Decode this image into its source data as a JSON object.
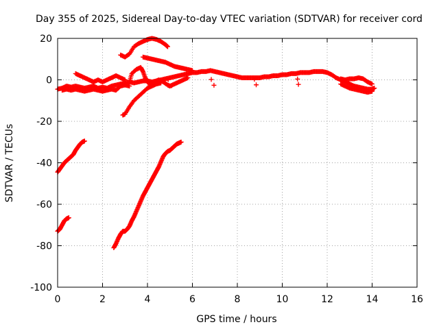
{
  "chart_data": {
    "type": "scatter",
    "title": "Day 355 of 2025, Sidereal Day-to-day VTEC variation (SDTVAR) for receiver cord",
    "xlabel": "GPS time / hours",
    "ylabel": "SDTVAR / TECUs",
    "xlim": [
      0,
      16
    ],
    "ylim": [
      -100,
      20
    ],
    "x_ticks": [
      0,
      2,
      4,
      6,
      8,
      10,
      12,
      14,
      16
    ],
    "y_ticks": [
      -100,
      -80,
      -60,
      -40,
      -20,
      0,
      20
    ],
    "grid": true,
    "marker": "plus",
    "color": "#ff0000",
    "series": [
      {
        "name": "baseline-band",
        "points": [
          [
            0.0,
            -4.5
          ],
          [
            0.2,
            -4
          ],
          [
            0.4,
            -3
          ],
          [
            0.6,
            -3.5
          ],
          [
            0.8,
            -3
          ],
          [
            1.0,
            -3.5
          ],
          [
            1.2,
            -4
          ],
          [
            1.4,
            -3.5
          ],
          [
            1.6,
            -3
          ],
          [
            1.8,
            -4
          ],
          [
            2.0,
            -3.5
          ],
          [
            2.2,
            -4
          ],
          [
            2.4,
            -3
          ],
          [
            2.6,
            -2.5
          ],
          [
            2.8,
            -2
          ],
          [
            3.0,
            -1.5
          ],
          [
            3.2,
            -1
          ],
          [
            3.4,
            -1.5
          ],
          [
            3.6,
            -1
          ],
          [
            3.8,
            -0.5
          ],
          [
            4.0,
            -0.5
          ],
          [
            4.2,
            -1
          ],
          [
            4.4,
            -0.5
          ],
          [
            4.6,
            0
          ],
          [
            4.8,
            0.5
          ],
          [
            5.0,
            1
          ],
          [
            5.2,
            1.5
          ],
          [
            5.4,
            2
          ],
          [
            5.6,
            2.5
          ],
          [
            5.8,
            3
          ],
          [
            6.0,
            3.5
          ],
          [
            6.2,
            3.5
          ],
          [
            6.4,
            4
          ],
          [
            6.6,
            4
          ],
          [
            6.8,
            4.5
          ],
          [
            7.0,
            4
          ],
          [
            7.2,
            3.5
          ],
          [
            7.4,
            3
          ],
          [
            7.6,
            2.5
          ],
          [
            7.8,
            2
          ],
          [
            8.0,
            1.5
          ],
          [
            8.2,
            1
          ],
          [
            8.4,
            1
          ],
          [
            8.6,
            1
          ],
          [
            8.8,
            1
          ],
          [
            9.0,
            1
          ],
          [
            9.2,
            1.5
          ],
          [
            9.4,
            1.5
          ],
          [
            9.6,
            2
          ],
          [
            9.8,
            2
          ],
          [
            10.0,
            2.5
          ],
          [
            10.2,
            2.5
          ],
          [
            10.4,
            3
          ],
          [
            10.6,
            3
          ],
          [
            10.8,
            3.5
          ],
          [
            11.0,
            3.5
          ],
          [
            11.2,
            3.5
          ],
          [
            11.4,
            4
          ],
          [
            11.6,
            4
          ],
          [
            11.8,
            4
          ],
          [
            12.0,
            3.5
          ],
          [
            12.2,
            2.5
          ],
          [
            12.4,
            1
          ],
          [
            12.6,
            0
          ],
          [
            12.8,
            -1
          ],
          [
            13.0,
            -2
          ],
          [
            13.2,
            -3
          ],
          [
            13.4,
            -3.5
          ],
          [
            13.6,
            -4
          ],
          [
            13.8,
            -4.5
          ],
          [
            14.0,
            -4.5
          ],
          [
            14.1,
            -4
          ]
        ]
      },
      {
        "name": "baseline-band-lower",
        "points": [
          [
            0.2,
            -5
          ],
          [
            0.4,
            -4.5
          ],
          [
            0.6,
            -5
          ],
          [
            0.8,
            -4.5
          ],
          [
            1.0,
            -5
          ],
          [
            1.2,
            -5.5
          ],
          [
            1.4,
            -5
          ],
          [
            1.6,
            -4.5
          ],
          [
            1.8,
            -5
          ],
          [
            2.0,
            -5.5
          ],
          [
            2.2,
            -5
          ],
          [
            2.4,
            -4.5
          ],
          [
            2.6,
            -5
          ],
          [
            2.8,
            -3
          ],
          [
            3.0,
            -2.5
          ],
          [
            3.2,
            -3
          ],
          [
            12.6,
            -2
          ],
          [
            12.8,
            -3
          ],
          [
            13.0,
            -4
          ],
          [
            13.2,
            -4.5
          ],
          [
            13.4,
            -5
          ],
          [
            13.6,
            -5.5
          ],
          [
            13.8,
            -6
          ],
          [
            14.0,
            -5.5
          ]
        ]
      },
      {
        "name": "baseline-band-upper",
        "points": [
          [
            0.8,
            3
          ],
          [
            1.0,
            2
          ],
          [
            1.2,
            1
          ],
          [
            1.4,
            0
          ],
          [
            1.6,
            -1
          ],
          [
            1.8,
            0
          ],
          [
            2.0,
            -1
          ],
          [
            2.2,
            0
          ],
          [
            2.4,
            1
          ],
          [
            2.6,
            2
          ],
          [
            2.8,
            1
          ],
          [
            3.0,
            0
          ],
          [
            12.6,
            0.5
          ],
          [
            12.8,
            0
          ],
          [
            13.0,
            0.5
          ],
          [
            13.2,
            0.5
          ],
          [
            13.4,
            1
          ],
          [
            13.6,
            0.5
          ],
          [
            13.8,
            -1
          ],
          [
            14.0,
            -2
          ]
        ]
      },
      {
        "name": "arc-upper",
        "points": [
          [
            2.8,
            12
          ],
          [
            3.0,
            11
          ],
          [
            3.2,
            12.5
          ],
          [
            3.4,
            16
          ],
          [
            3.6,
            17.5
          ],
          [
            3.8,
            18.5
          ],
          [
            4.0,
            19.5
          ],
          [
            4.2,
            20
          ],
          [
            4.4,
            19.5
          ],
          [
            4.6,
            18.5
          ],
          [
            4.8,
            17
          ],
          [
            4.9,
            16
          ]
        ]
      },
      {
        "name": "arc-middle",
        "points": [
          [
            3.8,
            11
          ],
          [
            4.0,
            10.5
          ],
          [
            4.2,
            10
          ],
          [
            4.4,
            9.5
          ],
          [
            4.6,
            9
          ],
          [
            4.8,
            8.5
          ],
          [
            5.0,
            7.5
          ],
          [
            5.2,
            6.5
          ],
          [
            5.4,
            6
          ],
          [
            5.6,
            5.5
          ],
          [
            5.8,
            5
          ],
          [
            6.0,
            4.5
          ]
        ]
      },
      {
        "name": "loop",
        "points": [
          [
            3.2,
            -1
          ],
          [
            3.3,
            3
          ],
          [
            3.5,
            5
          ],
          [
            3.7,
            6
          ],
          [
            3.8,
            4
          ],
          [
            3.9,
            1
          ],
          [
            4.0,
            -1
          ],
          [
            4.1,
            -2
          ],
          [
            4.3,
            -1
          ],
          [
            4.5,
            0
          ],
          [
            4.7,
            -1
          ],
          [
            4.9,
            -2.5
          ],
          [
            5.0,
            -3
          ],
          [
            5.2,
            -2
          ],
          [
            5.4,
            -1
          ],
          [
            5.6,
            0
          ],
          [
            5.8,
            1
          ]
        ]
      },
      {
        "name": "rise-from-minus17",
        "points": [
          [
            2.9,
            -17
          ],
          [
            3.0,
            -16.5
          ],
          [
            3.2,
            -13
          ],
          [
            3.4,
            -10
          ],
          [
            3.6,
            -8
          ],
          [
            3.8,
            -6
          ],
          [
            4.0,
            -4
          ],
          [
            4.2,
            -3
          ],
          [
            4.4,
            -2
          ],
          [
            4.6,
            -1.5
          ]
        ]
      },
      {
        "name": "track-minus44",
        "points": [
          [
            0.0,
            -44.5
          ],
          [
            0.1,
            -43
          ],
          [
            0.2,
            -41.5
          ],
          [
            0.3,
            -40
          ],
          [
            0.4,
            -39
          ],
          [
            0.5,
            -38
          ],
          [
            0.6,
            -37
          ],
          [
            0.7,
            -36
          ],
          [
            0.8,
            -34
          ],
          [
            0.9,
            -32.5
          ],
          [
            1.0,
            -31
          ],
          [
            1.1,
            -30
          ],
          [
            1.2,
            -29.5
          ]
        ]
      },
      {
        "name": "track-minus73",
        "points": [
          [
            0.0,
            -73
          ],
          [
            0.1,
            -72
          ],
          [
            0.2,
            -70
          ],
          [
            0.3,
            -68
          ],
          [
            0.4,
            -67
          ],
          [
            0.5,
            -66.5
          ]
        ]
      },
      {
        "name": "track-minus81",
        "points": [
          [
            2.5,
            -81
          ],
          [
            2.6,
            -79
          ],
          [
            2.7,
            -76.5
          ],
          [
            2.8,
            -74.5
          ],
          [
            2.9,
            -73
          ],
          [
            3.0,
            -73
          ],
          [
            3.1,
            -72
          ],
          [
            3.2,
            -70.5
          ],
          [
            3.3,
            -68
          ],
          [
            3.4,
            -66
          ],
          [
            3.5,
            -63.5
          ],
          [
            3.6,
            -61
          ],
          [
            3.7,
            -58.5
          ],
          [
            3.8,
            -56
          ],
          [
            3.9,
            -54
          ],
          [
            4.0,
            -52
          ],
          [
            4.1,
            -50
          ],
          [
            4.2,
            -48
          ],
          [
            4.3,
            -46
          ],
          [
            4.4,
            -44
          ],
          [
            4.5,
            -42
          ],
          [
            4.6,
            -39.5
          ],
          [
            4.7,
            -37
          ],
          [
            4.8,
            -35.5
          ],
          [
            4.9,
            -34.5
          ],
          [
            5.0,
            -34
          ],
          [
            5.1,
            -33
          ],
          [
            5.2,
            -32
          ],
          [
            5.3,
            -31
          ],
          [
            5.4,
            -30.5
          ],
          [
            5.5,
            -30
          ]
        ]
      }
    ]
  }
}
